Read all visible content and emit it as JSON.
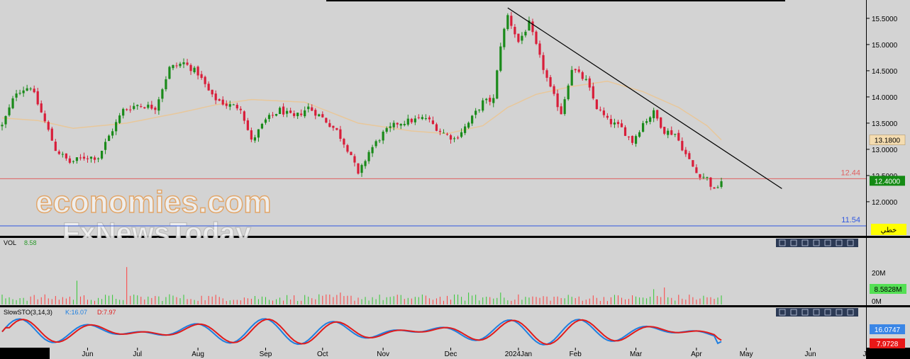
{
  "colors": {
    "panel_bg": "#d3d3d3",
    "frame": "#000000",
    "up": "#1a8a1a",
    "down": "#d81e3a",
    "ma": "#e8c79a",
    "support_red": "#e06060",
    "support_blue": "#2f57e0",
    "trendline": "#000000",
    "vol": "#ff4040",
    "vol_up": "#32c832",
    "sto_k": "#1e7fe0",
    "sto_d": "#e01b1b",
    "toolbar": "#2c3a55"
  },
  "watermark": {
    "line1": "economies.com",
    "line2": "FxNewsToday"
  },
  "price_panel": {
    "yaxis_labels": [
      "15.5000",
      "15.0000",
      "14.5000",
      "14.0000",
      "13.5000",
      "13.0000",
      "12.5000",
      "12.0000"
    ],
    "yaxis_values": [
      15.5,
      15.0,
      14.5,
      14.0,
      13.5,
      13.0,
      12.5,
      12.0
    ],
    "ylim": [
      11.35,
      15.85
    ],
    "current_price_tag": "12.4000",
    "ma_tag": "13.1800",
    "level_red_label": "12.44",
    "level_red_value": 12.44,
    "level_blue_label": "11.54",
    "level_blue_value": 11.54,
    "button_label": "خطي"
  },
  "volume_panel": {
    "title": "VOL",
    "value": "8.58",
    "yaxis_labels": [
      "20M",
      "0M"
    ],
    "current_tag": "8.5828M"
  },
  "sto_panel": {
    "title": "SlowSTO(3,14,3)",
    "k_label": "K:16.07",
    "d_label": "D:7.97",
    "k_tag": "16.0747",
    "d_tag": "7.9728"
  },
  "panel_toolbar_icons": [
    "close-icon",
    "window-icon",
    "minimize-icon",
    "move-up-icon",
    "move-down-icon",
    "settings-icon",
    "more-icon"
  ],
  "chart_data": {
    "type": "candlestick",
    "xaxis_labels": [
      "Jun",
      "Jul",
      "Aug",
      "Sep",
      "Oct",
      "Nov",
      "Dec",
      "2024Jan",
      "Feb",
      "Mar",
      "Apr",
      "May",
      "Jun",
      "Jul"
    ],
    "price_anchors": [
      {
        "i": 0,
        "p": 13.45
      },
      {
        "i": 4,
        "p": 14.1
      },
      {
        "i": 8,
        "p": 14.2
      },
      {
        "i": 11,
        "p": 13.7
      },
      {
        "i": 15,
        "p": 13.0
      },
      {
        "i": 19,
        "p": 12.75
      },
      {
        "i": 23,
        "p": 12.85
      },
      {
        "i": 27,
        "p": 12.85
      },
      {
        "i": 30,
        "p": 13.25
      },
      {
        "i": 34,
        "p": 13.75
      },
      {
        "i": 38,
        "p": 13.85
      },
      {
        "i": 43,
        "p": 13.8
      },
      {
        "i": 47,
        "p": 14.55
      },
      {
        "i": 51,
        "p": 14.65
      },
      {
        "i": 55,
        "p": 14.45
      },
      {
        "i": 59,
        "p": 14.0
      },
      {
        "i": 63,
        "p": 13.85
      },
      {
        "i": 67,
        "p": 13.8
      },
      {
        "i": 70,
        "p": 13.15
      },
      {
        "i": 74,
        "p": 13.55
      },
      {
        "i": 78,
        "p": 13.75
      },
      {
        "i": 82,
        "p": 13.6
      },
      {
        "i": 86,
        "p": 13.8
      },
      {
        "i": 90,
        "p": 13.6
      },
      {
        "i": 94,
        "p": 13.35
      },
      {
        "i": 98,
        "p": 12.9
      },
      {
        "i": 100,
        "p": 12.5
      },
      {
        "i": 103,
        "p": 12.95
      },
      {
        "i": 107,
        "p": 13.3
      },
      {
        "i": 111,
        "p": 13.5
      },
      {
        "i": 115,
        "p": 13.55
      },
      {
        "i": 119,
        "p": 13.6
      },
      {
        "i": 123,
        "p": 13.35
      },
      {
        "i": 127,
        "p": 13.2
      },
      {
        "i": 131,
        "p": 13.5
      },
      {
        "i": 135,
        "p": 13.9
      },
      {
        "i": 138,
        "p": 13.95
      },
      {
        "i": 140,
        "p": 15.0
      },
      {
        "i": 142,
        "p": 15.55
      },
      {
        "i": 145,
        "p": 15.05
      },
      {
        "i": 148,
        "p": 15.4
      },
      {
        "i": 151,
        "p": 14.75
      },
      {
        "i": 154,
        "p": 14.15
      },
      {
        "i": 157,
        "p": 13.7
      },
      {
        "i": 160,
        "p": 14.55
      },
      {
        "i": 164,
        "p": 14.3
      },
      {
        "i": 167,
        "p": 13.8
      },
      {
        "i": 170,
        "p": 13.55
      },
      {
        "i": 174,
        "p": 13.4
      },
      {
        "i": 177,
        "p": 13.15
      },
      {
        "i": 180,
        "p": 13.5
      },
      {
        "i": 183,
        "p": 13.7
      },
      {
        "i": 186,
        "p": 13.35
      },
      {
        "i": 189,
        "p": 13.3
      },
      {
        "i": 192,
        "p": 12.9
      },
      {
        "i": 195,
        "p": 12.55
      },
      {
        "i": 198,
        "p": 12.45
      },
      {
        "i": 200,
        "p": 12.2
      },
      {
        "i": 202,
        "p": 12.4
      }
    ],
    "ma_anchors": [
      {
        "i": 0,
        "p": 13.6
      },
      {
        "i": 10,
        "p": 13.55
      },
      {
        "i": 20,
        "p": 13.4
      },
      {
        "i": 35,
        "p": 13.5
      },
      {
        "i": 50,
        "p": 13.7
      },
      {
        "i": 60,
        "p": 13.85
      },
      {
        "i": 70,
        "p": 13.95
      },
      {
        "i": 85,
        "p": 13.9
      },
      {
        "i": 100,
        "p": 13.5
      },
      {
        "i": 115,
        "p": 13.35
      },
      {
        "i": 125,
        "p": 13.3
      },
      {
        "i": 135,
        "p": 13.45
      },
      {
        "i": 142,
        "p": 13.8
      },
      {
        "i": 150,
        "p": 14.05
      },
      {
        "i": 160,
        "p": 14.2
      },
      {
        "i": 170,
        "p": 14.3
      },
      {
        "i": 180,
        "p": 14.1
      },
      {
        "i": 190,
        "p": 13.8
      },
      {
        "i": 198,
        "p": 13.45
      },
      {
        "i": 202,
        "p": 13.18
      }
    ],
    "trendline": {
      "start_i": 142,
      "start_p": 15.7,
      "end_i": 219,
      "end_p": 12.25
    },
    "volume_spikes": [
      {
        "i": 21,
        "v": 14
      },
      {
        "i": 35,
        "v": 22
      },
      {
        "i": 47,
        "v": 6
      },
      {
        "i": 95,
        "v": 7
      },
      {
        "i": 131,
        "v": 7
      },
      {
        "i": 140,
        "v": 7
      },
      {
        "i": 183,
        "v": 9
      },
      {
        "i": 186,
        "v": 10
      }
    ],
    "xaxis_positions_i": [
      24,
      38,
      55,
      74,
      90,
      107,
      126,
      145,
      161,
      178,
      195,
      209,
      227,
      243
    ]
  }
}
